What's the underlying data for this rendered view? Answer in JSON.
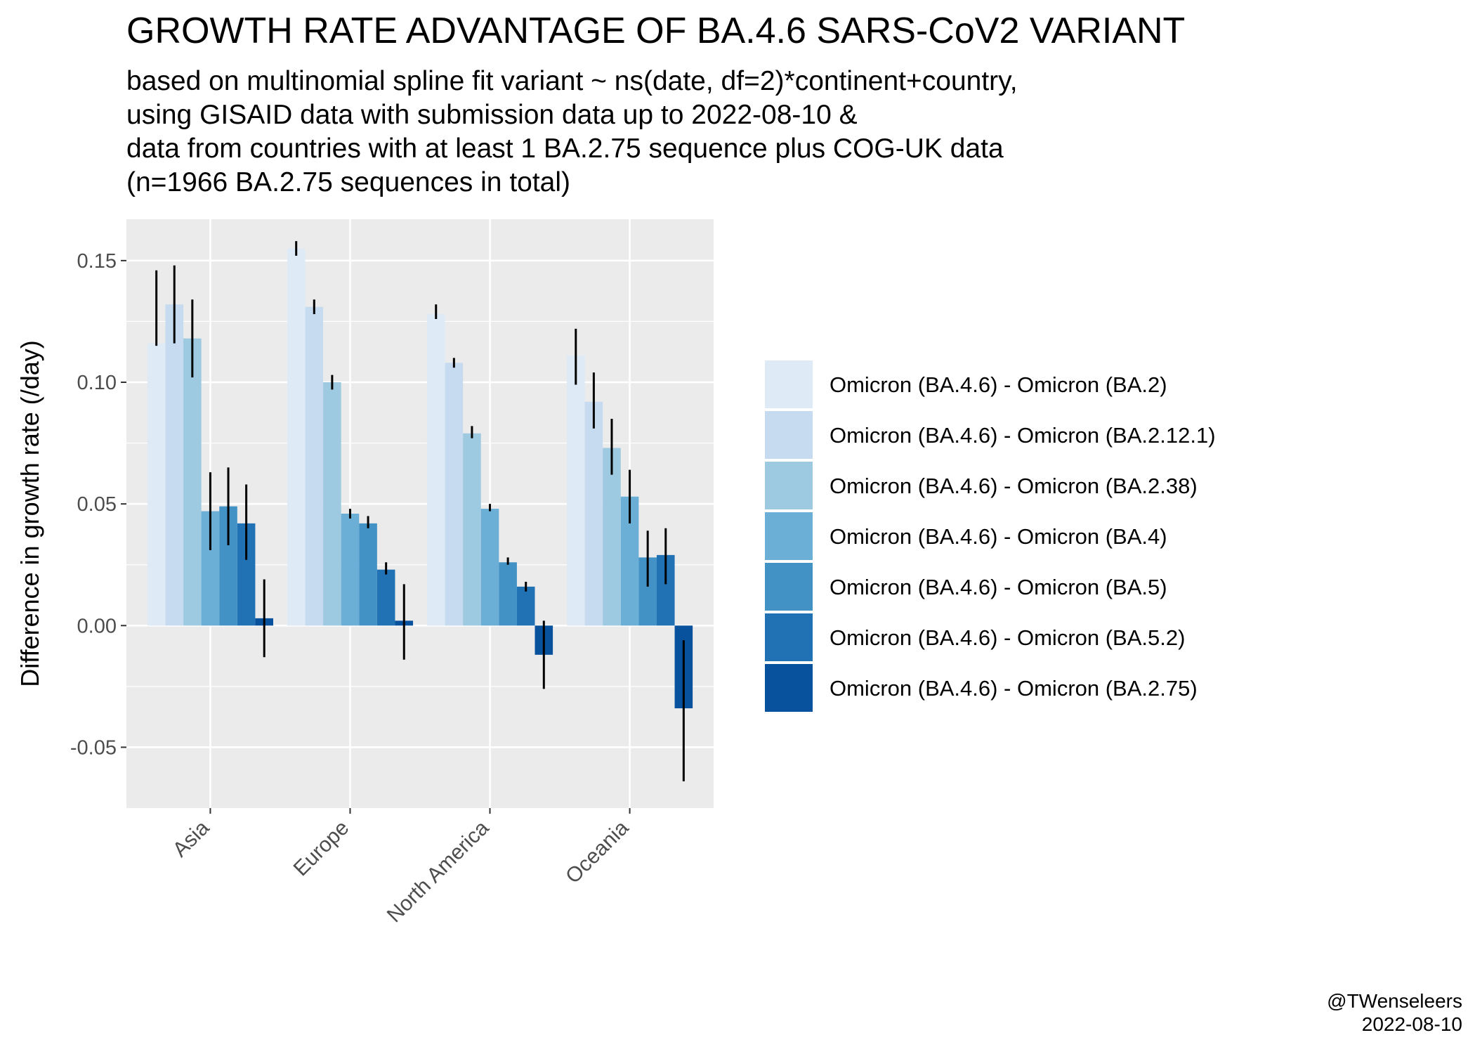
{
  "title": "GROWTH RATE ADVANTAGE OF BA.4.6 SARS-CoV2 VARIANT",
  "subtitle": [
    "based on multinomial spline fit variant ~ ns(date, df=2)*continent+country,",
    "using GISAID data with submission data up to 2022-08-10 &",
    "data from countries with at least 1 BA.2.75 sequence plus COG-UK data",
    "(n=1966 BA.2.75 sequences in total)"
  ],
  "credit": {
    "author": "@TWenseleers",
    "date": "2022-08-10"
  },
  "chart_data": {
    "type": "bar",
    "title": "GROWTH RATE ADVANTAGE OF BA.4.6 SARS-CoV2 VARIANT",
    "xlabel": "",
    "ylabel": "Difference in growth rate (/day)",
    "ylim": [
      -0.075,
      0.167
    ],
    "yticks": [
      -0.05,
      0.0,
      0.05,
      0.1,
      0.15
    ],
    "ytick_labels": [
      "-0.05",
      "0.00",
      "0.05",
      "0.10",
      "0.15"
    ],
    "categories": [
      "Asia",
      "Europe",
      "North America",
      "Oceania"
    ],
    "grid": true,
    "legend_position": "right",
    "error_bars": true,
    "series": [
      {
        "name": "Omicron (BA.4.6) - Omicron (BA.2)",
        "color": "#deebf7",
        "values": [
          0.116,
          0.155,
          0.128,
          0.111
        ],
        "lower": [
          0.115,
          0.152,
          0.126,
          0.099
        ],
        "upper": [
          0.146,
          0.158,
          0.132,
          0.122
        ]
      },
      {
        "name": "Omicron (BA.4.6) - Omicron (BA.2.12.1)",
        "color": "#c6dbef",
        "values": [
          0.132,
          0.131,
          0.108,
          0.092
        ],
        "lower": [
          0.116,
          0.128,
          0.106,
          0.081
        ],
        "upper": [
          0.148,
          0.134,
          0.11,
          0.104
        ]
      },
      {
        "name": "Omicron (BA.4.6) - Omicron (BA.2.38)",
        "color": "#9ecae1",
        "values": [
          0.118,
          0.1,
          0.079,
          0.073
        ],
        "lower": [
          0.102,
          0.097,
          0.077,
          0.062
        ],
        "upper": [
          0.134,
          0.103,
          0.082,
          0.085
        ]
      },
      {
        "name": "Omicron (BA.4.6) - Omicron (BA.4)",
        "color": "#6baed6",
        "values": [
          0.047,
          0.046,
          0.048,
          0.053
        ],
        "lower": [
          0.031,
          0.044,
          0.047,
          0.042
        ],
        "upper": [
          0.063,
          0.048,
          0.05,
          0.064
        ]
      },
      {
        "name": "Omicron (BA.4.6) - Omicron (BA.5)",
        "color": "#4292c6",
        "values": [
          0.049,
          0.042,
          0.026,
          0.028
        ],
        "lower": [
          0.033,
          0.04,
          0.025,
          0.016
        ],
        "upper": [
          0.065,
          0.045,
          0.028,
          0.039
        ]
      },
      {
        "name": "Omicron (BA.4.6) - Omicron (BA.5.2)",
        "color": "#2171b5",
        "values": [
          0.042,
          0.023,
          0.016,
          0.029
        ],
        "lower": [
          0.027,
          0.021,
          0.014,
          0.017
        ],
        "upper": [
          0.058,
          0.026,
          0.018,
          0.04
        ]
      },
      {
        "name": "Omicron (BA.4.6) - Omicron (BA.2.75)",
        "color": "#08519c",
        "values": [
          0.003,
          0.002,
          -0.012,
          -0.034
        ],
        "lower": [
          -0.013,
          -0.014,
          -0.026,
          -0.064
        ],
        "upper": [
          0.019,
          0.017,
          0.002,
          -0.006
        ]
      }
    ]
  }
}
